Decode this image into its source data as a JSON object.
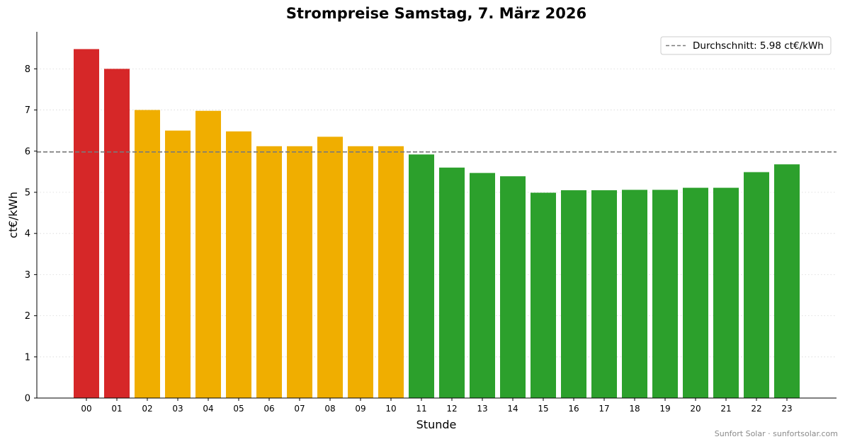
{
  "chart_data": {
    "type": "bar",
    "title": "Strompreise Samstag, 7. März 2026",
    "xlabel": "Stunde",
    "ylabel": "ct€/kWh",
    "ylim": [
      0,
      8.9
    ],
    "yticks": [
      0,
      1,
      2,
      3,
      4,
      5,
      6,
      7,
      8
    ],
    "grid": "horizontal dotted",
    "legend_position": "top-right",
    "categories": [
      "00",
      "01",
      "02",
      "03",
      "04",
      "05",
      "06",
      "07",
      "08",
      "09",
      "10",
      "11",
      "12",
      "13",
      "14",
      "15",
      "16",
      "17",
      "18",
      "19",
      "20",
      "21",
      "22",
      "23"
    ],
    "values": [
      8.48,
      8.0,
      7.0,
      6.5,
      6.98,
      6.48,
      6.12,
      6.12,
      6.35,
      6.12,
      6.12,
      5.92,
      5.6,
      5.47,
      5.39,
      4.99,
      5.05,
      5.05,
      5.06,
      5.06,
      5.11,
      5.11,
      5.49,
      5.68
    ],
    "bar_color_levels": [
      "high",
      "high",
      "mid",
      "mid",
      "mid",
      "mid",
      "mid",
      "mid",
      "mid",
      "mid",
      "mid",
      "low",
      "low",
      "low",
      "low",
      "low",
      "low",
      "low",
      "low",
      "low",
      "low",
      "low",
      "low",
      "low"
    ],
    "colors": {
      "high": "#d62728",
      "mid": "#f0ae00",
      "low": "#2ca02c",
      "average_line": "#7a7a7a"
    },
    "average": {
      "value": 5.98,
      "label": "Durchschnitt: 5.98 ct€/kWh"
    }
  },
  "footer": "Sunfort Solar · sunfortsolar.com"
}
